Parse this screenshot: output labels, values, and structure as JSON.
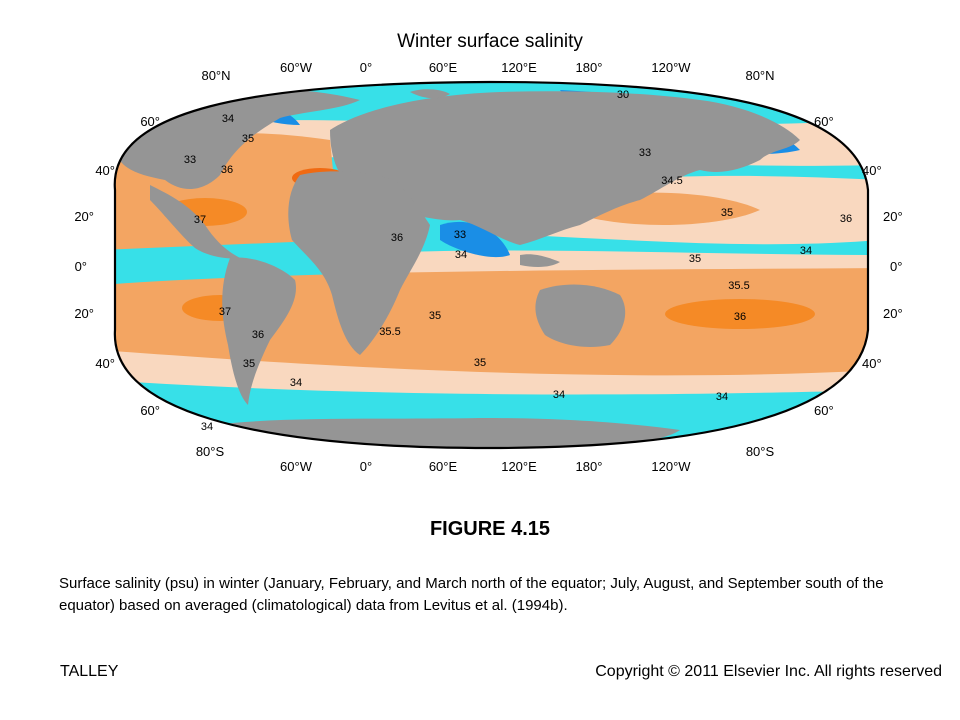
{
  "map": {
    "title": "Winter surface salinity",
    "colors": {
      "land": "#959595",
      "deep_blue": "#1a8ee6",
      "cyan": "#37e0e8",
      "pale": "#f9d8bf",
      "light_orange": "#f3a562",
      "orange": "#f58a26",
      "dark_orange": "#f06a12"
    },
    "top_axis_labels": [
      "80°N",
      "60°W",
      "0°",
      "60°E",
      "120°E",
      "180°",
      "120°W",
      "80°N"
    ],
    "bottom_axis_labels": [
      "80°S",
      "60°W",
      "0°",
      "60°E",
      "120°E",
      "180°",
      "120°W",
      "80°S"
    ],
    "left_lat_labels": [
      "60°",
      "40°",
      "20°",
      "0°",
      "20°",
      "40°",
      "60°"
    ],
    "right_lat_labels": [
      "60°",
      "40°",
      "20°",
      "0°",
      "20°",
      "40°",
      "60°"
    ],
    "contour_labels": [
      "30",
      "34",
      "35",
      "33",
      "36",
      "33",
      "34.5",
      "37",
      "35",
      "36",
      "33",
      "34",
      "34",
      "35",
      "35.5",
      "37",
      "36",
      "35",
      "35.5",
      "36",
      "35",
      "34",
      "34",
      "34",
      "35",
      "34",
      "36"
    ]
  },
  "figure": {
    "label": "FIGURE 4.15",
    "caption": "Surface salinity (psu) in winter (January, February, and March north of the equator; July, August, and September south of the equator) based on averaged (climatological) data from Levitus et al. (1994b)."
  },
  "footer": {
    "left": "TALLEY",
    "right": "Copyright © 2011 Elsevier Inc. All rights reserved"
  }
}
